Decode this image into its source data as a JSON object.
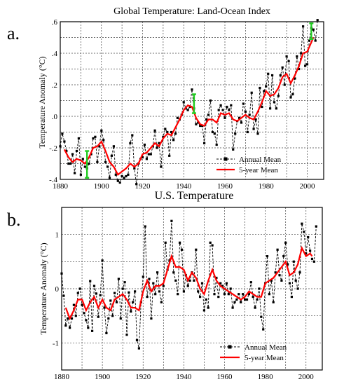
{
  "chart_data": [
    {
      "panel_label": "a.",
      "type": "line",
      "title": "Global Temperature: Land-Ocean Index",
      "xlabel": "",
      "ylabel": "Temperature Anomaly (°C)",
      "xlim": [
        1880,
        2008
      ],
      "ylim": [
        -0.4,
        0.6
      ],
      "xticks": [
        1880,
        1900,
        1920,
        1940,
        1960,
        1980,
        2000
      ],
      "yticks": [
        -0.4,
        -0.2,
        0.0,
        0.2,
        0.4,
        0.6
      ],
      "ytick_labels": [
        "-.4",
        "-.2",
        ".0",
        ".2",
        ".4",
        ".6"
      ],
      "grid": true,
      "legend_position": "lower-right",
      "series": [
        {
          "name": "Annual Mean",
          "style": "black dashed with square markers",
          "x": [
            1880,
            1881,
            1882,
            1883,
            1884,
            1885,
            1886,
            1887,
            1888,
            1889,
            1890,
            1891,
            1892,
            1893,
            1894,
            1895,
            1896,
            1897,
            1898,
            1899,
            1900,
            1901,
            1902,
            1903,
            1904,
            1905,
            1906,
            1907,
            1908,
            1909,
            1910,
            1911,
            1912,
            1913,
            1914,
            1915,
            1916,
            1917,
            1918,
            1919,
            1920,
            1921,
            1922,
            1923,
            1924,
            1925,
            1926,
            1927,
            1928,
            1929,
            1930,
            1931,
            1932,
            1933,
            1934,
            1935,
            1936,
            1937,
            1938,
            1939,
            1940,
            1941,
            1942,
            1943,
            1944,
            1945,
            1946,
            1947,
            1948,
            1949,
            1950,
            1951,
            1952,
            1953,
            1954,
            1955,
            1956,
            1957,
            1958,
            1959,
            1960,
            1961,
            1962,
            1963,
            1964,
            1965,
            1966,
            1967,
            1968,
            1969,
            1970,
            1971,
            1972,
            1973,
            1974,
            1975,
            1976,
            1977,
            1978,
            1979,
            1980,
            1981,
            1982,
            1983,
            1984,
            1985,
            1986,
            1987,
            1988,
            1989,
            1990,
            1991,
            1992,
            1993,
            1994,
            1995,
            1996,
            1997,
            1998,
            1999,
            2000,
            2001,
            2002,
            2003,
            2004,
            2005
          ],
          "values": [
            -0.19,
            -0.11,
            -0.16,
            -0.22,
            -0.3,
            -0.3,
            -0.24,
            -0.36,
            -0.22,
            -0.14,
            -0.37,
            -0.27,
            -0.32,
            -0.33,
            -0.3,
            -0.24,
            -0.14,
            -0.13,
            -0.29,
            -0.19,
            -0.09,
            -0.15,
            -0.29,
            -0.32,
            -0.39,
            -0.25,
            -0.19,
            -0.37,
            -0.41,
            -0.42,
            -0.38,
            -0.39,
            -0.38,
            -0.37,
            -0.17,
            -0.12,
            -0.33,
            -0.43,
            -0.3,
            -0.27,
            -0.26,
            -0.18,
            -0.27,
            -0.24,
            -0.24,
            -0.19,
            -0.09,
            -0.2,
            -0.17,
            -0.32,
            -0.13,
            -0.08,
            -0.1,
            -0.25,
            -0.1,
            -0.15,
            -0.11,
            -0.01,
            -0.02,
            0.01,
            0.09,
            0.05,
            0.04,
            0.06,
            0.17,
            0.05,
            -0.05,
            -0.04,
            -0.06,
            -0.06,
            -0.17,
            -0.02,
            0.01,
            0.1,
            -0.1,
            -0.11,
            -0.18,
            0.04,
            0.07,
            0.04,
            -0.01,
            0.06,
            0.04,
            0.07,
            -0.21,
            -0.11,
            -0.03,
            -0.01,
            -0.04,
            0.08,
            0.03,
            -0.1,
            0.01,
            0.15,
            -0.08,
            -0.02,
            -0.11,
            0.18,
            0.06,
            0.16,
            0.19,
            0.27,
            0.05,
            0.26,
            0.09,
            0.05,
            0.13,
            0.26,
            0.31,
            0.2,
            0.38,
            0.35,
            0.12,
            0.14,
            0.24,
            0.38,
            0.3,
            0.4,
            0.57,
            0.32,
            0.33,
            0.48,
            0.56,
            0.55,
            0.48,
            0.61
          ]
        },
        {
          "name": "5-year Mean",
          "style": "red solid",
          "x": [
            1882,
            1884,
            1886,
            1888,
            1890,
            1892,
            1894,
            1896,
            1898,
            1900,
            1902,
            1904,
            1906,
            1908,
            1910,
            1912,
            1914,
            1916,
            1918,
            1920,
            1922,
            1924,
            1926,
            1928,
            1930,
            1932,
            1934,
            1936,
            1938,
            1940,
            1942,
            1944,
            1946,
            1948,
            1950,
            1952,
            1954,
            1956,
            1958,
            1960,
            1962,
            1964,
            1966,
            1968,
            1970,
            1972,
            1974,
            1976,
            1978,
            1980,
            1982,
            1984,
            1986,
            1988,
            1990,
            1992,
            1994,
            1996,
            1998,
            2000,
            2002,
            2003
          ],
          "values": [
            -0.21,
            -0.26,
            -0.29,
            -0.27,
            -0.28,
            -0.3,
            -0.26,
            -0.2,
            -0.19,
            -0.16,
            -0.22,
            -0.29,
            -0.32,
            -0.37,
            -0.35,
            -0.33,
            -0.3,
            -0.32,
            -0.3,
            -0.24,
            -0.23,
            -0.2,
            -0.17,
            -0.19,
            -0.14,
            -0.11,
            -0.12,
            -0.07,
            -0.02,
            0.04,
            0.07,
            0.06,
            -0.01,
            -0.05,
            -0.06,
            -0.02,
            -0.02,
            -0.04,
            0.02,
            0.01,
            0.02,
            -0.02,
            -0.03,
            -0.01,
            0.01,
            -0.01,
            -0.02,
            0.03,
            0.09,
            0.16,
            0.13,
            0.14,
            0.18,
            0.25,
            0.27,
            0.21,
            0.26,
            0.32,
            0.4,
            0.41,
            0.47,
            0.5
          ]
        }
      ],
      "error_bars": [
        {
          "x": 1893,
          "low": -0.39,
          "high": -0.22
        },
        {
          "x": 1945,
          "low": 0.02,
          "high": 0.14
        },
        {
          "x": 2002,
          "low": 0.49,
          "high": 0.59
        }
      ]
    },
    {
      "panel_label": "b.",
      "type": "line",
      "title": "U.S. Temperature",
      "xlabel": "",
      "ylabel": "Temperature Anomaly (°C)",
      "xlim": [
        1880,
        2008
      ],
      "ylim": [
        -1.5,
        1.5
      ],
      "xticks": [
        1880,
        1900,
        1920,
        1940,
        1960,
        1980,
        2000
      ],
      "yticks": [
        -1,
        0,
        1
      ],
      "ytick_labels": [
        "-1",
        "0",
        "1"
      ],
      "grid": true,
      "legend_position": "lower-right",
      "series": [
        {
          "name": "Annual Mean",
          "style": "black dashed with square markers",
          "x": [
            1880,
            1881,
            1882,
            1883,
            1884,
            1885,
            1886,
            1887,
            1888,
            1889,
            1890,
            1891,
            1892,
            1893,
            1894,
            1895,
            1896,
            1897,
            1898,
            1899,
            1900,
            1901,
            1902,
            1903,
            1904,
            1905,
            1906,
            1907,
            1908,
            1909,
            1910,
            1911,
            1912,
            1913,
            1914,
            1915,
            1916,
            1917,
            1918,
            1919,
            1920,
            1921,
            1922,
            1923,
            1924,
            1925,
            1926,
            1927,
            1928,
            1929,
            1930,
            1931,
            1932,
            1933,
            1934,
            1935,
            1936,
            1937,
            1938,
            1939,
            1940,
            1941,
            1942,
            1943,
            1944,
            1945,
            1946,
            1947,
            1948,
            1949,
            1950,
            1951,
            1952,
            1953,
            1954,
            1955,
            1956,
            1957,
            1958,
            1959,
            1960,
            1961,
            1962,
            1963,
            1964,
            1965,
            1966,
            1967,
            1968,
            1969,
            1970,
            1971,
            1972,
            1973,
            1974,
            1975,
            1976,
            1977,
            1978,
            1979,
            1980,
            1981,
            1982,
            1983,
            1984,
            1985,
            1986,
            1987,
            1988,
            1989,
            1990,
            1991,
            1992,
            1993,
            1994,
            1995,
            1996,
            1997,
            1998,
            1999,
            2000,
            2001,
            2002,
            2003,
            2004,
            2005
          ],
          "values": [
            0.28,
            -0.13,
            -0.68,
            -0.55,
            -0.72,
            -0.55,
            -0.3,
            -0.5,
            -0.08,
            0.0,
            -0.3,
            -0.45,
            -0.58,
            -0.72,
            0.14,
            -0.78,
            0.05,
            -0.09,
            -0.52,
            -0.12,
            0.52,
            -0.35,
            -0.82,
            -0.55,
            -0.22,
            -0.5,
            -0.08,
            -0.25,
            0.18,
            -0.55,
            0.0,
            0.12,
            -0.85,
            -0.07,
            -0.42,
            -0.25,
            -0.05,
            -0.95,
            -1.1,
            -0.25,
            0.22,
            1.15,
            -0.15,
            0.18,
            -0.55,
            0.1,
            -0.1,
            0.3,
            -0.05,
            -0.25,
            0.05,
            0.85,
            0.35,
            0.52,
            1.25,
            0.3,
            0.15,
            -0.1,
            0.85,
            0.72,
            -0.05,
            0.25,
            0.05,
            0.15,
            0.3,
            0.15,
            0.72,
            -0.05,
            -0.15,
            0.1,
            -0.4,
            -0.2,
            -0.35,
            0.85,
            0.8,
            -0.1,
            0.2,
            -0.15,
            0.1,
            0.05,
            -0.1,
            0.1,
            -0.1,
            0.0,
            -0.35,
            -0.25,
            -0.2,
            -0.1,
            -0.25,
            -0.1,
            -0.2,
            -0.2,
            -0.1,
            0.12,
            -0.15,
            -0.35,
            -0.2,
            0.0,
            -0.52,
            -0.75,
            0.1,
            0.6,
            -0.1,
            0.15,
            -0.25,
            0.3,
            0.72,
            0.25,
            0.15,
            0.6,
            0.85,
            0.45,
            0.1,
            -0.15,
            0.5,
            0.15,
            0.0,
            0.3,
            1.2,
            1.05,
            0.65,
            0.95,
            0.7,
            0.55,
            0.5,
            1.15
          ]
        },
        {
          "name": "5-year Mean",
          "style": "red solid",
          "x": [
            1882,
            1884,
            1886,
            1888,
            1890,
            1892,
            1894,
            1896,
            1898,
            1900,
            1902,
            1904,
            1906,
            1908,
            1910,
            1912,
            1914,
            1916,
            1918,
            1920,
            1922,
            1924,
            1926,
            1928,
            1930,
            1932,
            1934,
            1936,
            1938,
            1940,
            1942,
            1944,
            1946,
            1948,
            1950,
            1952,
            1954,
            1956,
            1958,
            1960,
            1962,
            1964,
            1966,
            1968,
            1970,
            1972,
            1974,
            1976,
            1978,
            1980,
            1982,
            1984,
            1986,
            1988,
            1990,
            1992,
            1994,
            1996,
            1998,
            2000,
            2002,
            2003
          ],
          "values": [
            -0.35,
            -0.55,
            -0.4,
            -0.2,
            -0.2,
            -0.4,
            -0.25,
            -0.15,
            -0.35,
            -0.2,
            -0.35,
            -0.4,
            -0.2,
            -0.15,
            -0.1,
            -0.2,
            -0.35,
            -0.35,
            -0.4,
            -0.05,
            0.15,
            -0.05,
            0.05,
            0.05,
            0.1,
            0.35,
            0.6,
            0.4,
            0.4,
            0.35,
            0.15,
            0.3,
            0.2,
            0.0,
            -0.1,
            0.15,
            0.35,
            0.15,
            0.05,
            0.0,
            -0.05,
            -0.1,
            -0.15,
            -0.2,
            -0.15,
            -0.05,
            -0.1,
            -0.15,
            -0.15,
            0.1,
            0.15,
            0.2,
            0.3,
            0.4,
            0.5,
            0.25,
            0.3,
            0.45,
            0.75,
            0.6,
            0.65,
            0.6
          ]
        }
      ]
    }
  ]
}
